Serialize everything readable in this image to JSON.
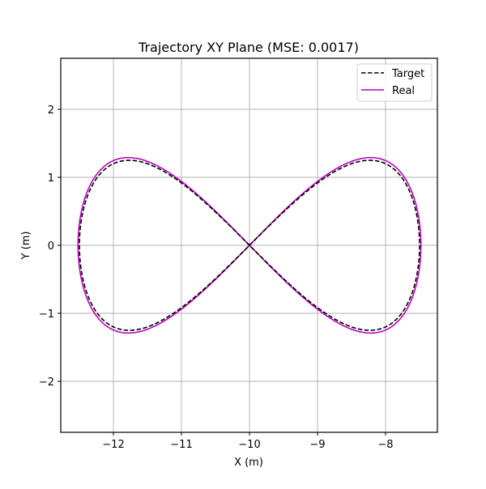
{
  "chart_data": {
    "type": "line",
    "title": "Trajectory XY Plane (MSE: 0.0017)",
    "xlabel": "X (m)",
    "ylabel": "Y (m)",
    "xlim": [
      -12.774,
      -7.238
    ],
    "ylim": [
      -2.75,
      2.75
    ],
    "xticks": [
      -12,
      -11,
      -10,
      -9,
      -8
    ],
    "xtick_labels": [
      "−12",
      "−11",
      "−10",
      "−9",
      "−8"
    ],
    "yticks": [
      -2,
      -1,
      0,
      1,
      2
    ],
    "ytick_labels": [
      "−2",
      "−1",
      "0",
      "1",
      "2"
    ],
    "grid": true,
    "legend_position": "upper right",
    "series": [
      {
        "name": "Target",
        "color": "#000000",
        "style": "dashed",
        "shape": "figure-eight",
        "center": [
          -10,
          0
        ],
        "x_amplitude": 2.5,
        "y_amplitude": 1.25,
        "sample_points": [
          [
            -10,
            0
          ],
          [
            -8.23,
            1.25
          ],
          [
            -7.5,
            0
          ],
          [
            -8.23,
            -1.25
          ],
          [
            -10,
            0
          ],
          [
            -11.77,
            1.25
          ],
          [
            -12.5,
            0
          ],
          [
            -11.77,
            -1.25
          ]
        ]
      },
      {
        "name": "Real",
        "color": "#bf00bf",
        "style": "solid",
        "shape": "figure-eight",
        "center": [
          -10,
          0
        ],
        "x_amplitude": 2.52,
        "y_amplitude": 1.29,
        "sample_points": [
          [
            -10,
            0
          ],
          [
            -8.2,
            1.29
          ],
          [
            -7.48,
            0
          ],
          [
            -8.2,
            -1.29
          ],
          [
            -10,
            0
          ],
          [
            -11.8,
            1.29
          ],
          [
            -12.52,
            0
          ],
          [
            -11.8,
            -1.29
          ]
        ]
      }
    ]
  },
  "legend": {
    "items": [
      {
        "label": "Target"
      },
      {
        "label": "Real"
      }
    ]
  }
}
